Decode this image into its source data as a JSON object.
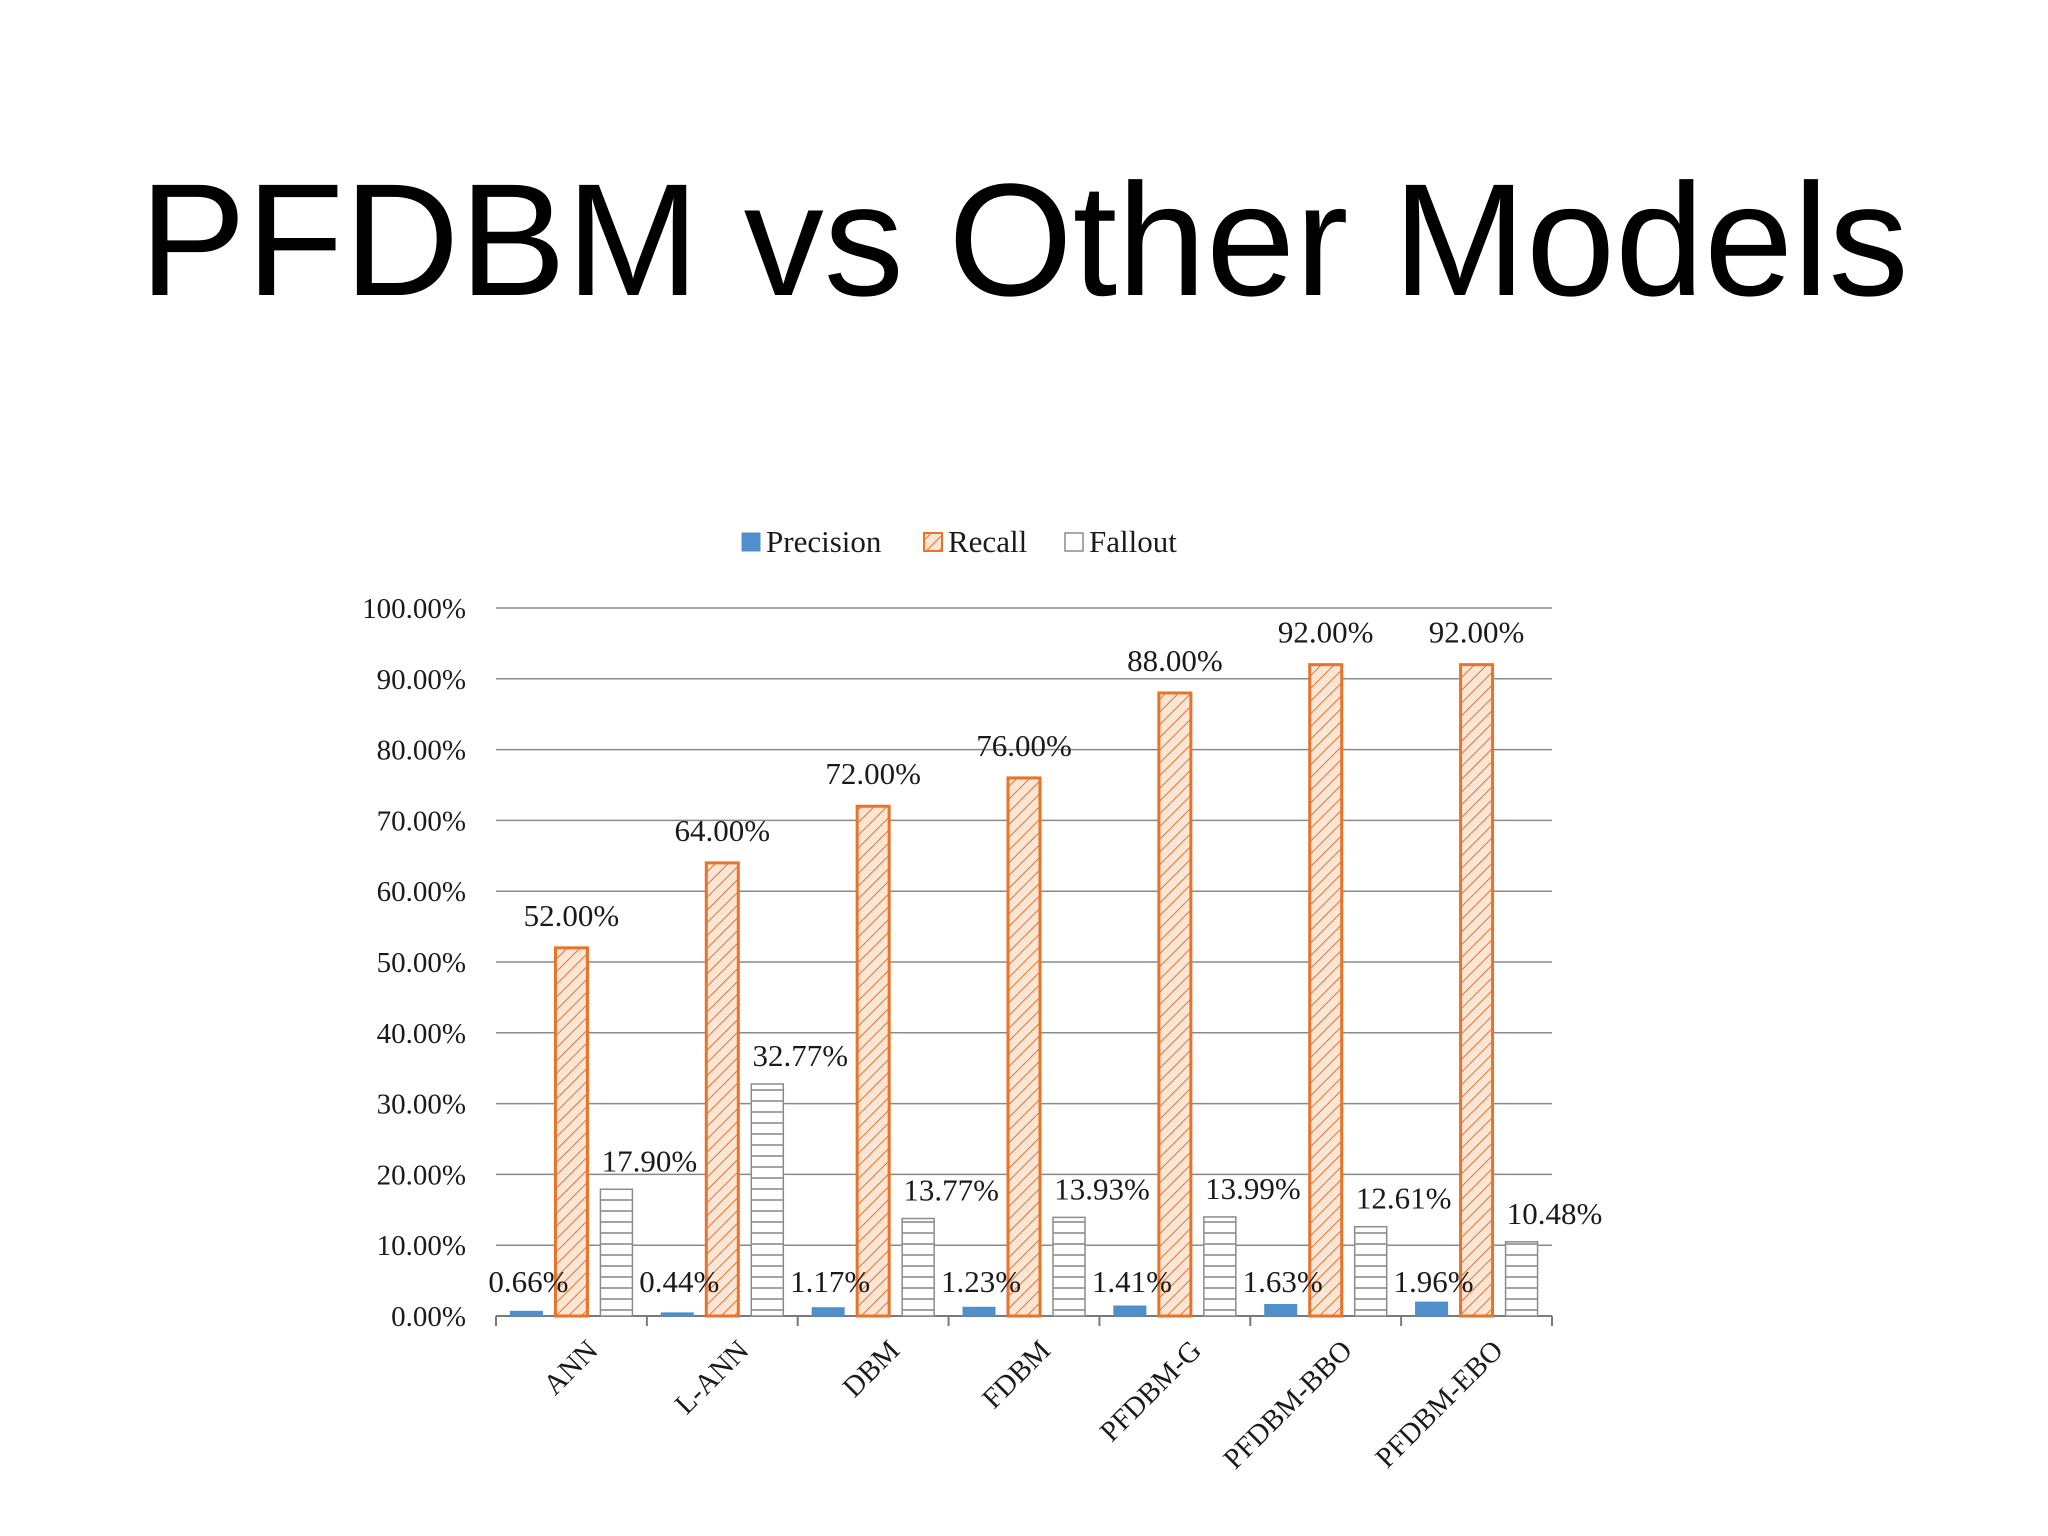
{
  "slide": {
    "title": "PFDBM vs Other Models"
  },
  "colors": {
    "precision": "#4f8fcb",
    "recall_fill": "#f7ddc8",
    "recall_stroke": "#e8732a",
    "fallout_stroke": "#8c8c8c",
    "grid": "#8a8a8a"
  },
  "chart_data": {
    "type": "bar",
    "title": "",
    "xlabel": "",
    "ylabel": "",
    "ylim": [
      0,
      100
    ],
    "y_ticks": [
      "0.00%",
      "10.00%",
      "20.00%",
      "30.00%",
      "40.00%",
      "50.00%",
      "60.00%",
      "70.00%",
      "80.00%",
      "90.00%",
      "100.00%"
    ],
    "categories": [
      "ANN",
      "L-ANN",
      "DBM",
      "FDBM",
      "PFDBM-G",
      "PFDBM-BBO",
      "PFDBM-EBO"
    ],
    "legend_position": "top",
    "grid": true,
    "series": [
      {
        "name": "Precision",
        "values": [
          0.66,
          0.44,
          1.17,
          1.23,
          1.41,
          1.63,
          1.96
        ],
        "labels": [
          "0.66%",
          "0.44%",
          "1.17%",
          "1.23%",
          "1.41%",
          "1.63%",
          "1.96%"
        ],
        "pattern": "solid"
      },
      {
        "name": "Recall",
        "values": [
          52,
          64,
          72,
          76,
          88,
          92,
          92
        ],
        "labels": [
          "52.00%",
          "64.00%",
          "72.00%",
          "76.00%",
          "88.00%",
          "92.00%",
          "92.00%"
        ],
        "pattern": "diagonal-hatch"
      },
      {
        "name": "Fallout",
        "values": [
          17.9,
          32.77,
          13.77,
          13.93,
          13.99,
          12.61,
          10.48
        ],
        "labels": [
          "17.90%",
          "32.77%",
          "13.77%",
          "13.93%",
          "13.99%",
          "12.61%",
          "10.48%"
        ],
        "pattern": "horizontal-lines"
      }
    ]
  }
}
